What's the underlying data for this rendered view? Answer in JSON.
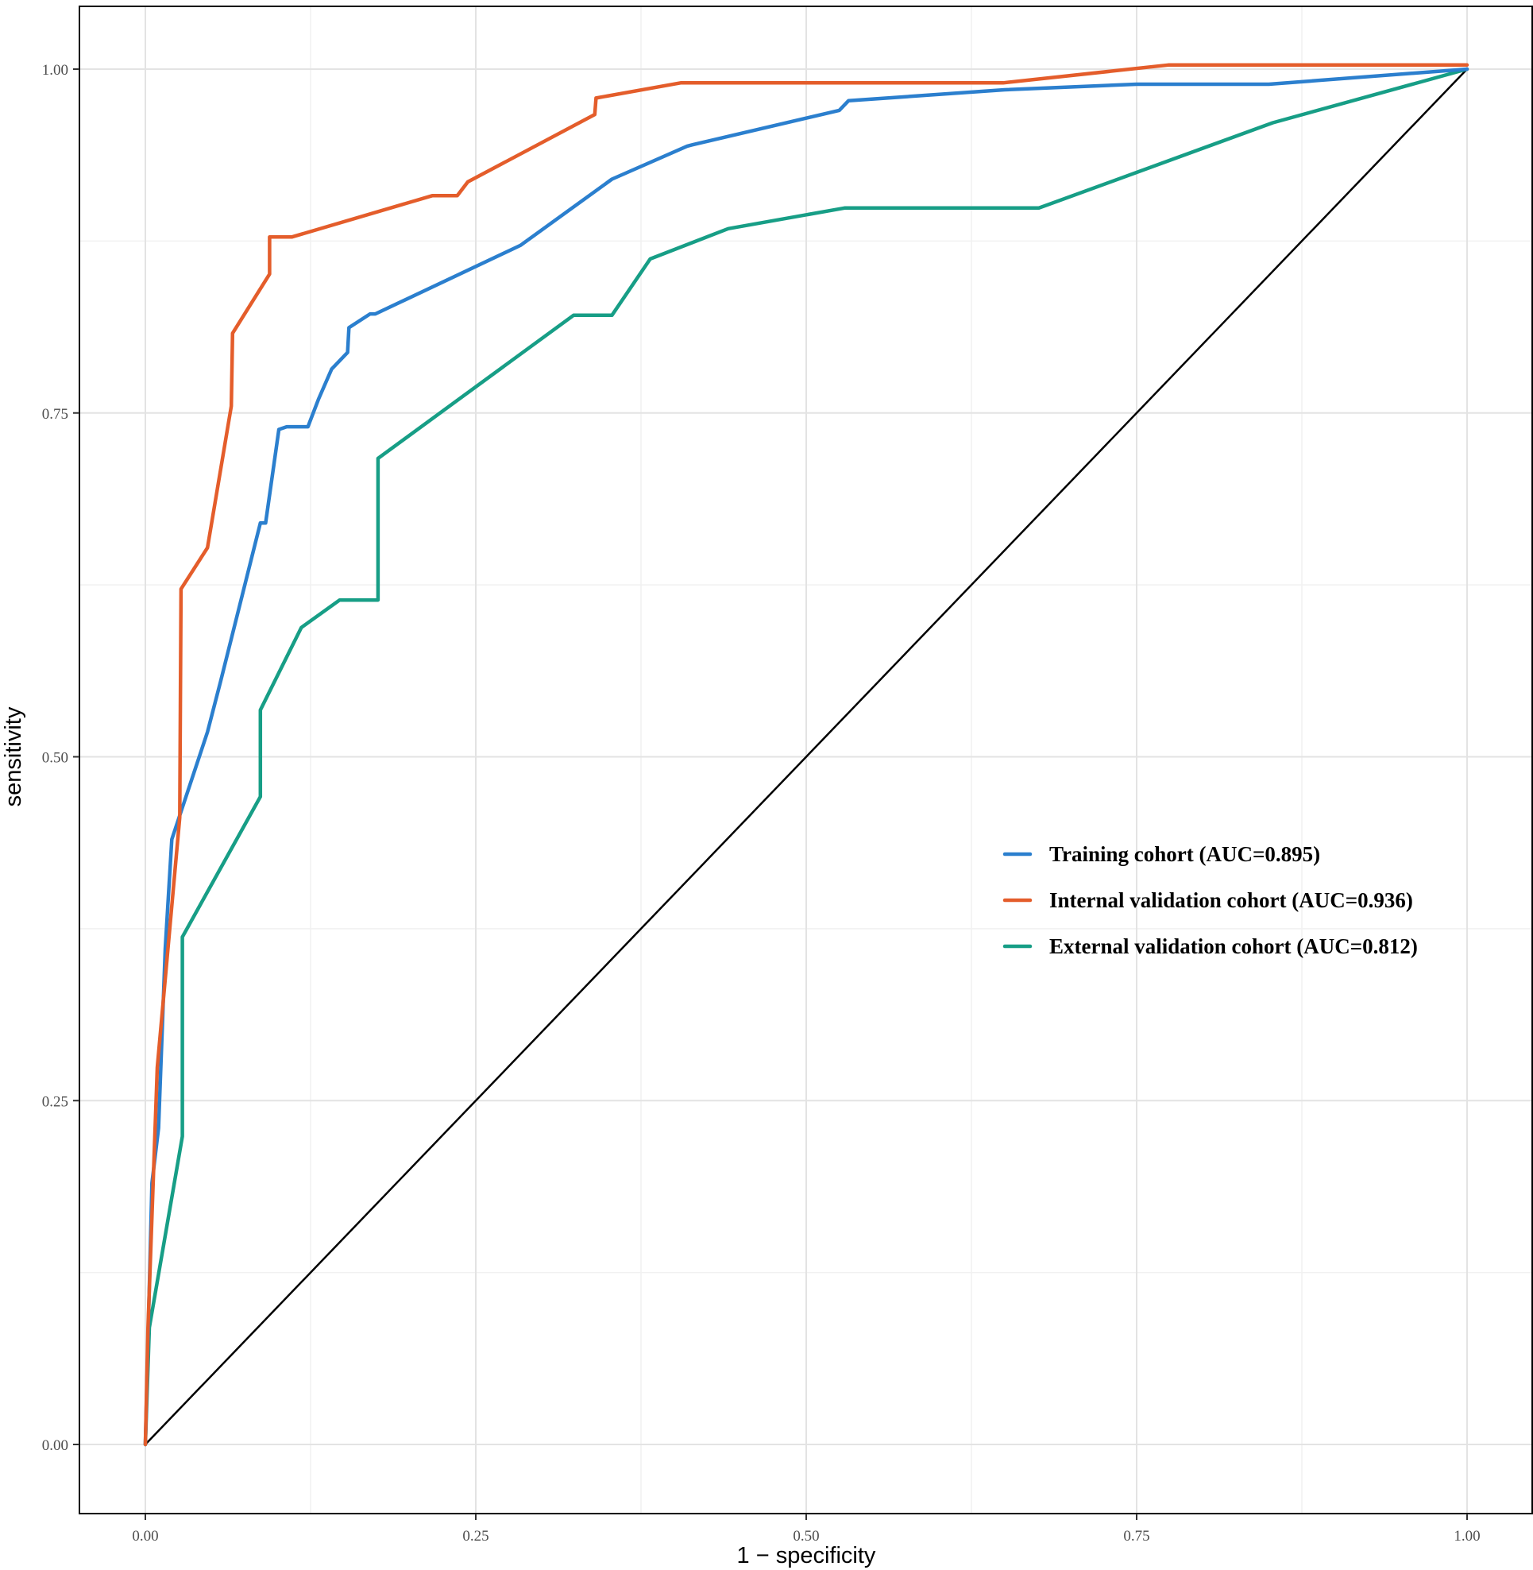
{
  "chart_data": {
    "type": "line",
    "title": "",
    "xlabel": "1 − specificity",
    "ylabel": "sensitivity",
    "xlim": [
      -0.05,
      1.05
    ],
    "ylim": [
      -0.05,
      1.05
    ],
    "x_ticks": [
      "0.00",
      "0.25",
      "0.50",
      "0.75",
      "1.00"
    ],
    "y_ticks": [
      "0.00",
      "0.25",
      "0.50",
      "0.75",
      "1.00"
    ],
    "grid": true,
    "legend_position": "right-center",
    "reference_line": {
      "x": [
        0,
        1
      ],
      "y": [
        0,
        1
      ],
      "color": "#000000"
    },
    "series": [
      {
        "name": "Training cohort (AUC=0.895)",
        "color": "#2b7fce",
        "x": [
          0.0,
          0.005,
          0.01,
          0.015,
          0.02,
          0.047,
          0.057,
          0.087,
          0.091,
          0.101,
          0.107,
          0.123,
          0.125,
          0.131,
          0.141,
          0.153,
          0.154,
          0.17,
          0.174,
          0.284,
          0.353,
          0.41,
          0.414,
          0.525,
          0.532,
          0.65,
          0.75,
          0.85,
          1.0
        ],
        "y": [
          0.0,
          0.19,
          0.23,
          0.36,
          0.44,
          0.518,
          0.555,
          0.67,
          0.67,
          0.738,
          0.74,
          0.74,
          0.745,
          0.76,
          0.782,
          0.794,
          0.812,
          0.822,
          0.822,
          0.872,
          0.92,
          0.944,
          0.945,
          0.97,
          0.977,
          0.985,
          0.989,
          0.989,
          1.0
        ]
      },
      {
        "name": "Internal validation cohort (AUC=0.936)",
        "color": "#e45d2b",
        "x": [
          0.0,
          0.002,
          0.009,
          0.026,
          0.027,
          0.047,
          0.065,
          0.066,
          0.094,
          0.094,
          0.111,
          0.217,
          0.236,
          0.244,
          0.34,
          0.341,
          0.405,
          0.649,
          0.774,
          1.0
        ],
        "y": [
          0.0,
          0.085,
          0.274,
          0.456,
          0.622,
          0.652,
          0.755,
          0.808,
          0.851,
          0.878,
          0.878,
          0.908,
          0.908,
          0.918,
          0.967,
          0.979,
          0.99,
          0.99,
          1.003,
          1.003
        ]
      },
      {
        "name": "External validation cohort (AUC=0.812)",
        "color": "#179e86",
        "x": [
          0.0,
          0.003,
          0.028,
          0.028,
          0.087,
          0.087,
          0.118,
          0.147,
          0.176,
          0.176,
          0.324,
          0.353,
          0.382,
          0.441,
          0.529,
          0.676,
          0.853,
          1.0
        ],
        "y": [
          0.0,
          0.085,
          0.224,
          0.369,
          0.471,
          0.534,
          0.594,
          0.614,
          0.614,
          0.717,
          0.821,
          0.821,
          0.862,
          0.884,
          0.899,
          0.899,
          0.961,
          1.0
        ]
      }
    ]
  }
}
